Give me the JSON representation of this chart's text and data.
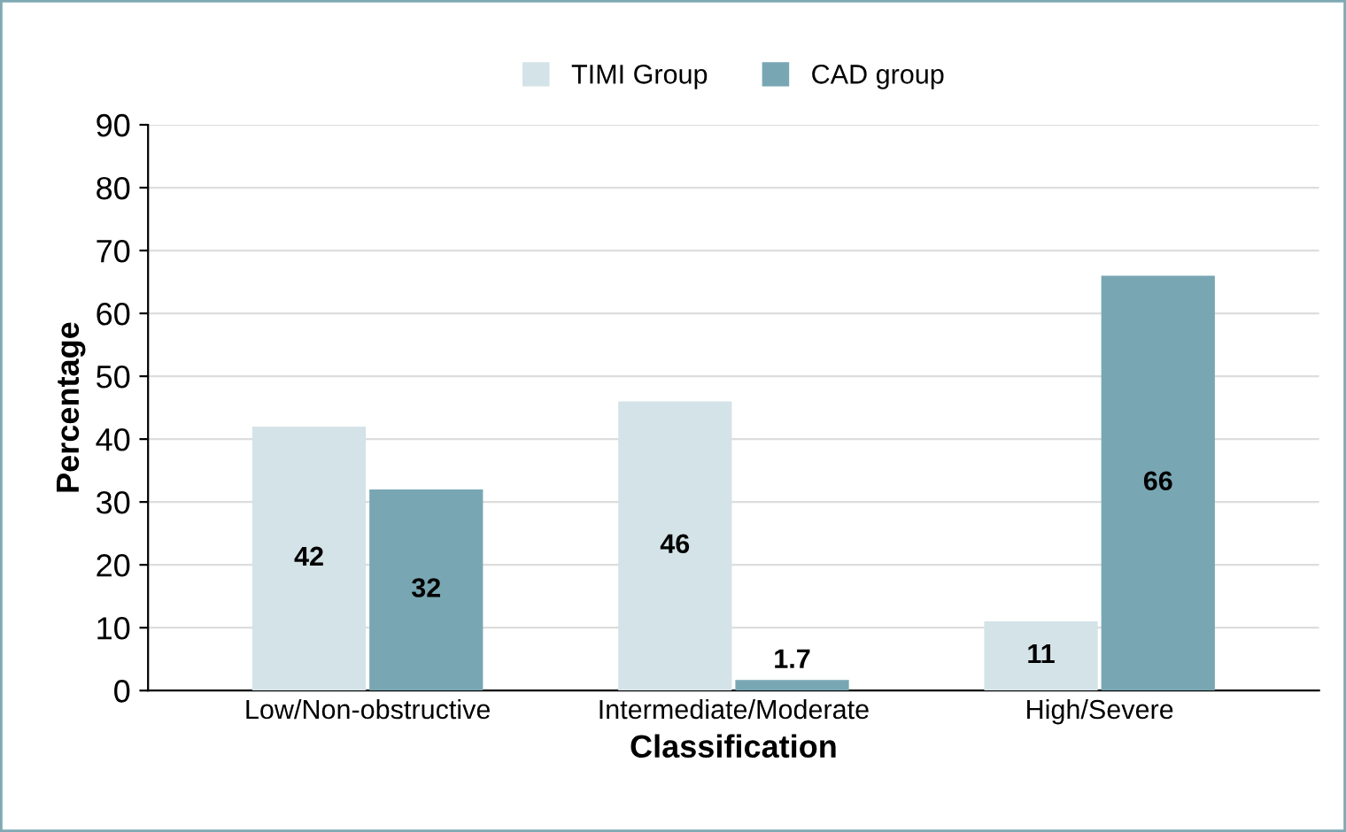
{
  "chart_data": {
    "type": "bar",
    "categories": [
      "Low/Non-obstructive",
      "Intermediate/Moderate",
      "High/Severe"
    ],
    "series": [
      {
        "name": "TIMI Group",
        "color": "#d4e3e7",
        "values": [
          42,
          46,
          11
        ]
      },
      {
        "name": "CAD group",
        "color": "#78a7b3",
        "values": [
          32,
          1.7,
          66
        ]
      }
    ],
    "xlabel": "Classification",
    "ylabel": "Percentage",
    "ylim": [
      0,
      90
    ],
    "yticks": [
      0,
      10,
      20,
      30,
      40,
      50,
      60,
      70,
      80,
      90
    ],
    "grid": "y",
    "legend": "top",
    "data_labels": true
  }
}
